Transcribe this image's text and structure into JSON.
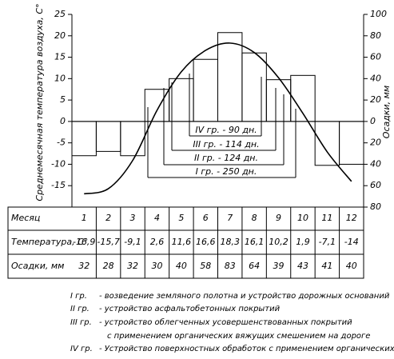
{
  "chart_data": {
    "type": "combo",
    "ylabel": "Среднемесячная температура воздуха, С°",
    "y2label": "Осадки, мм",
    "categories_header": "Месяц",
    "categories": [
      "1",
      "2",
      "3",
      "4",
      "5",
      "6",
      "7",
      "8",
      "9",
      "10",
      "11",
      "12"
    ],
    "series": [
      {
        "name": "Температура, С°",
        "type": "line",
        "axis": "y",
        "color": "#000000",
        "values": [
          -16.9,
          -15.7,
          -9.1,
          2.6,
          11.6,
          16.6,
          18.3,
          16.1,
          10.2,
          1.9,
          -7.1,
          -14
        ],
        "value_labels": [
          "-16,9",
          "-15,7",
          "-9,1",
          "2,6",
          "11,6",
          "16,6",
          "18,3",
          "16,1",
          "10,2",
          "1,9",
          "-7,1",
          "-14"
        ]
      },
      {
        "name": "Осадки, мм",
        "type": "bar",
        "axis": "y2",
        "color": "#000000",
        "values": [
          32,
          28,
          32,
          30,
          40,
          58,
          83,
          64,
          39,
          43,
          41,
          40
        ]
      }
    ],
    "ylim": [
      -20,
      25
    ],
    "yticks": [
      25,
      20,
      15,
      10,
      5,
      0,
      -5,
      -10,
      -15
    ],
    "y2lim": [
      -80,
      100
    ],
    "y2ticks": [
      100,
      80,
      60,
      40,
      20,
      0,
      {
        "value": -20,
        "label": "20"
      },
      {
        "value": -40,
        "label": "40"
      },
      {
        "value": -60,
        "label": "60"
      },
      {
        "value": -80,
        "label": "80"
      }
    ],
    "annotations": [
      "IV гр. - 90 дн.",
      "III гр. - 114 дн.",
      "II гр. - 124 дн.",
      "I гр. - 250 дн."
    ],
    "notes": [
      {
        "label": "I гр.",
        "text": "- возведение земляного полотна и устройство дорожных оснований"
      },
      {
        "label": "II гр.",
        "text": "- устройство асфальтобетонных покрытий"
      },
      {
        "label": "III гр.",
        "text": "- устройство облегченных усовершенствованных покрытий"
      },
      {
        "label": "",
        "text": "с применением органических вяжущих смешением на дороге"
      },
      {
        "label": "IV гр.",
        "text": "- Устройство поверхностных обработок с применением органических вяжущих"
      }
    ]
  }
}
